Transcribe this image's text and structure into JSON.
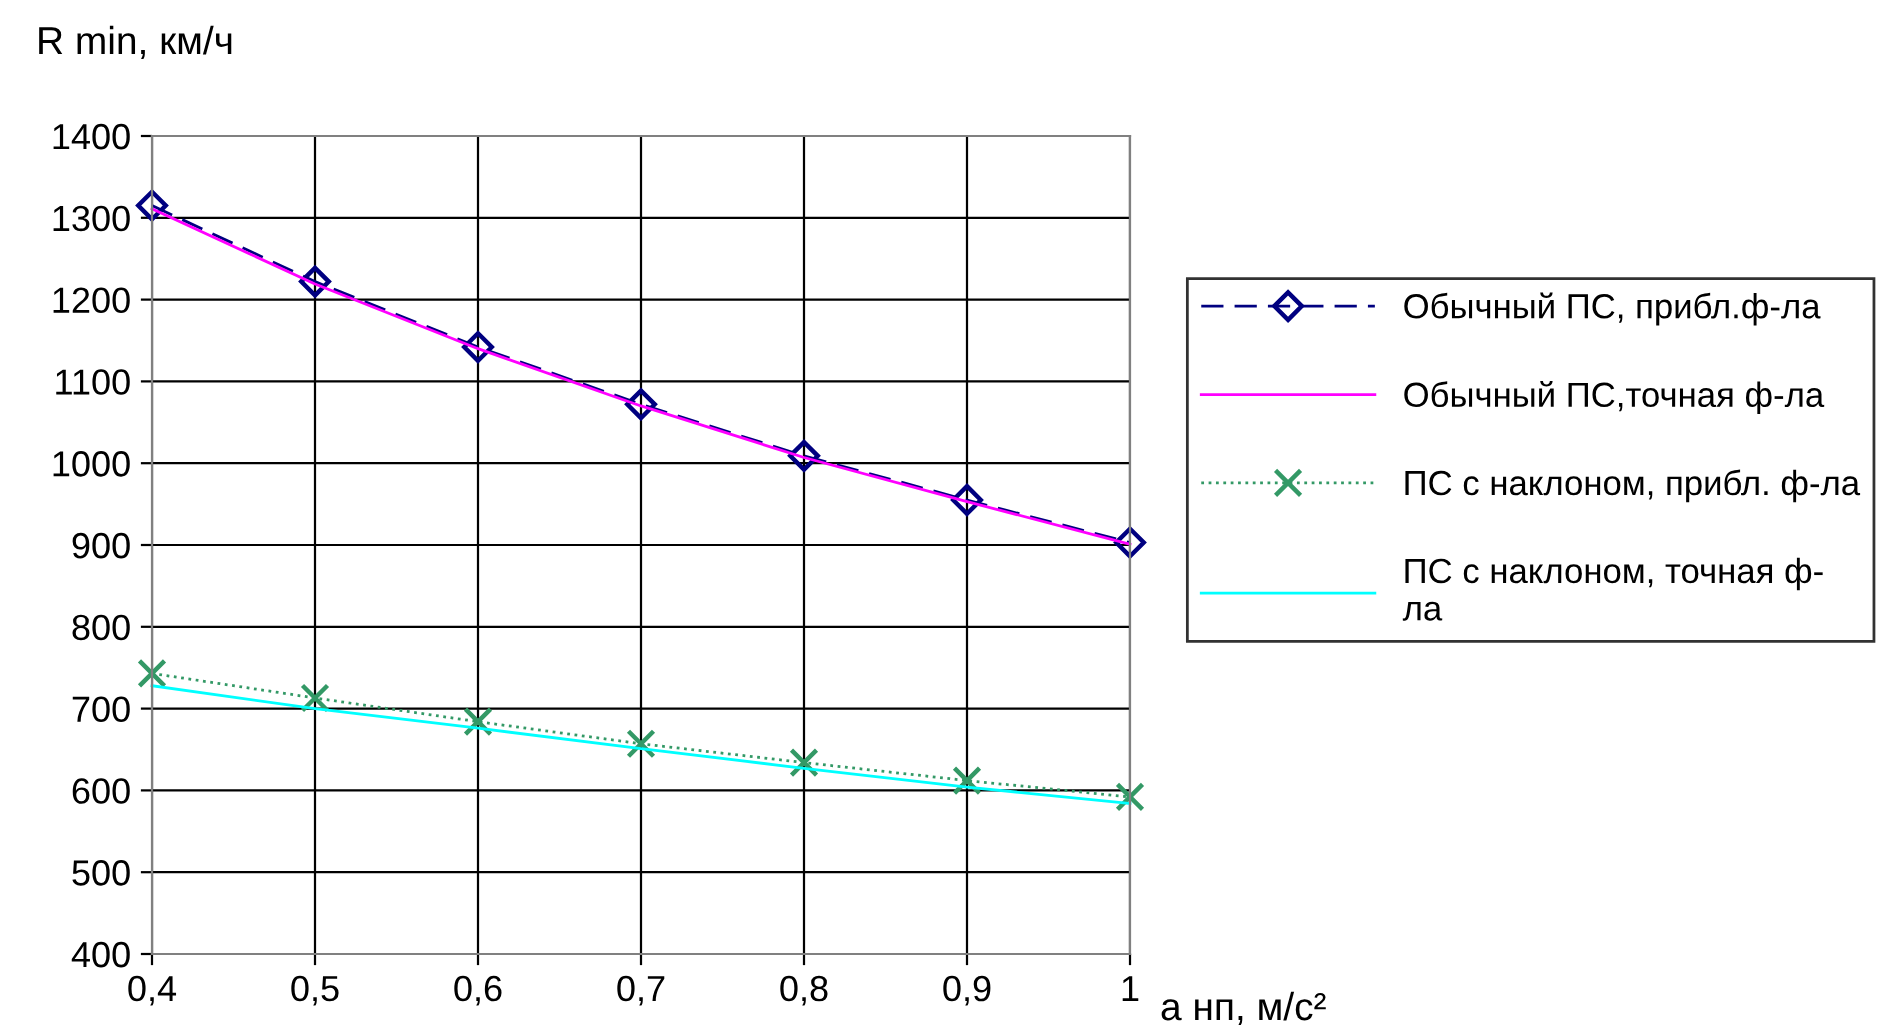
{
  "chart_data": {
    "type": "line",
    "ylabel": "R min, км/ч",
    "xlabel": "a нп, м/с²",
    "x": [
      0.4,
      0.5,
      0.6,
      0.7,
      0.8,
      0.9,
      1
    ],
    "xlim": [
      0.4,
      1
    ],
    "xticks": [
      {
        "value": 0.4,
        "label": "0,4"
      },
      {
        "value": 0.5,
        "label": "0,5"
      },
      {
        "value": 0.6,
        "label": "0,6"
      },
      {
        "value": 0.7,
        "label": "0,7"
      },
      {
        "value": 0.8,
        "label": "0,8"
      },
      {
        "value": 0.9,
        "label": "0,9"
      },
      {
        "value": 1,
        "label": "1"
      }
    ],
    "ylim": [
      400,
      1400
    ],
    "yticks": [
      400,
      500,
      600,
      700,
      800,
      900,
      1000,
      1100,
      1200,
      1300,
      1400
    ],
    "grid": true,
    "legend": "right",
    "series": [
      {
        "name": "Обычный ПС, прибл.ф-ла",
        "color": "#000080",
        "marker": "diamond",
        "line_style": "dashed",
        "values": [
          1315,
          1222,
          1142,
          1072,
          1009,
          955,
          903
        ]
      },
      {
        "name": "Обычный ПС,точная ф-ла",
        "color": "#ff00ff",
        "marker": "none",
        "line_style": "solid",
        "values": [
          1311,
          1219,
          1140,
          1070,
          1007,
          953,
          901
        ]
      },
      {
        "name": "ПС с наклоном, прибл. ф-ла",
        "color": "#339966",
        "marker": "cross",
        "line_style": "dotted",
        "values": [
          743,
          713,
          684,
          657,
          634,
          612,
          592
        ]
      },
      {
        "name": "ПС с наклоном, точная ф-\nла",
        "color": "#00ffff",
        "marker": "none",
        "line_style": "solid",
        "values": [
          728,
          700,
          676,
          651,
          627,
          604,
          584
        ]
      }
    ]
  }
}
